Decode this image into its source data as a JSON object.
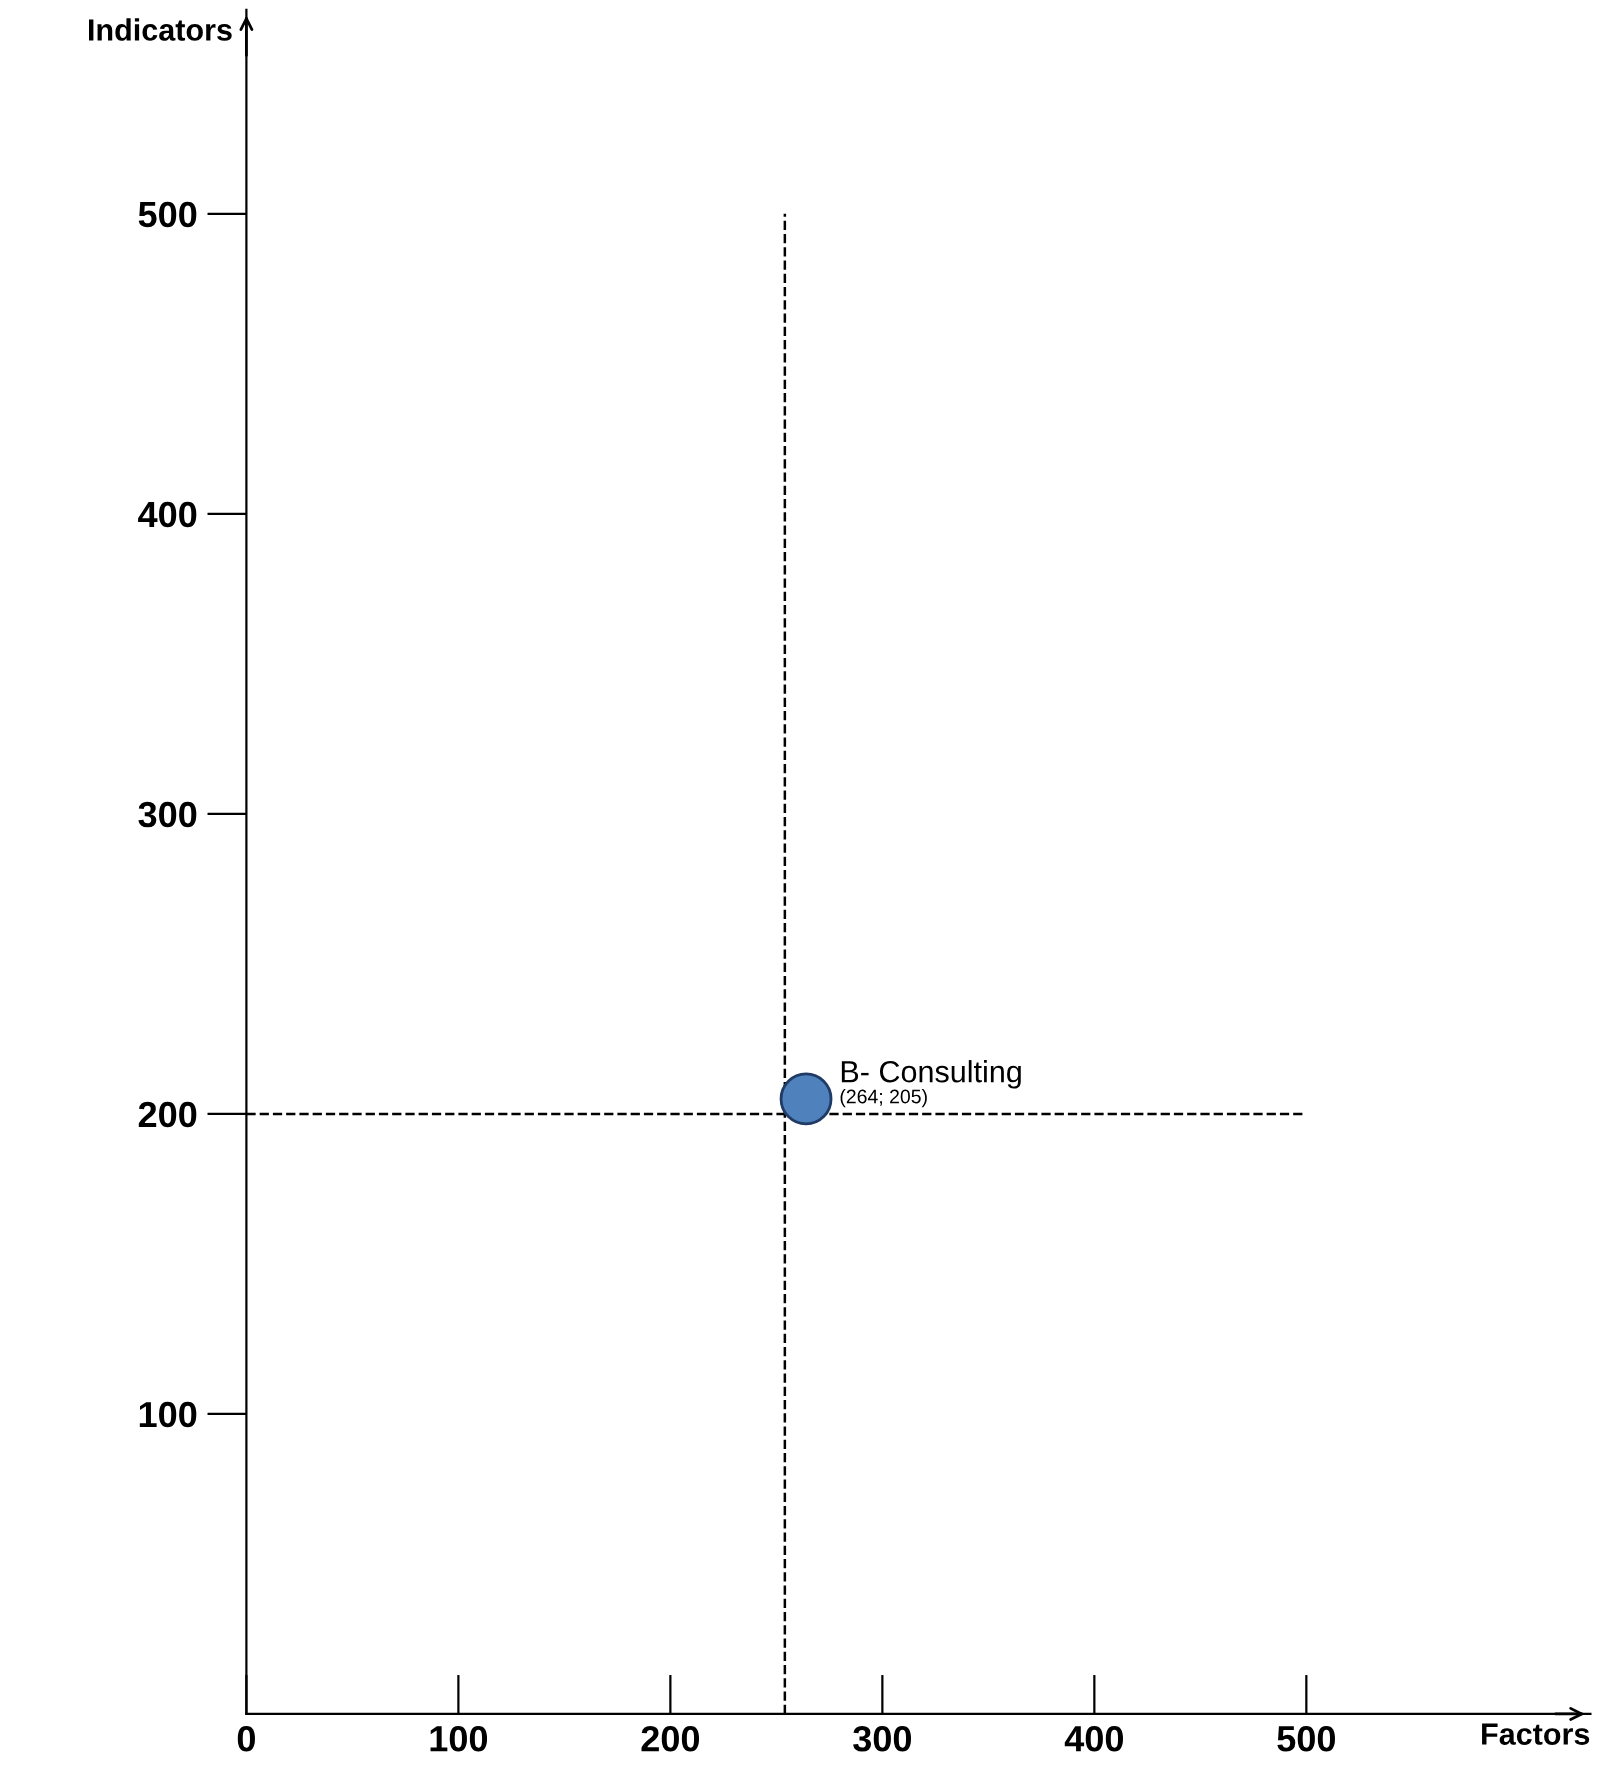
{
  "chart_data": {
    "type": "scatter",
    "xlabel": "Factors",
    "ylabel": "Indicators",
    "series": [
      {
        "name": "B- Consulting",
        "color": "#4f81bd",
        "x": [
          264
        ],
        "values": [
          205
        ]
      }
    ],
    "annotations": [
      {
        "text": "(264; 205)",
        "x": 264,
        "y": 205
      }
    ],
    "xlim": [
      0,
      634
    ],
    "ylim": [
      0,
      568
    ],
    "xticks": [
      0,
      100,
      200,
      300,
      400,
      500
    ],
    "yticks": [
      100,
      200,
      300,
      400,
      500
    ],
    "ref_lines": [
      {
        "axis": "x",
        "value": 254,
        "line_style": "dashed",
        "color": "#000000"
      },
      {
        "axis": "y",
        "value": 200,
        "line_style": "dashed",
        "color": "#000000"
      }
    ],
    "marker": "circle",
    "grid": false,
    "legend": false
  }
}
